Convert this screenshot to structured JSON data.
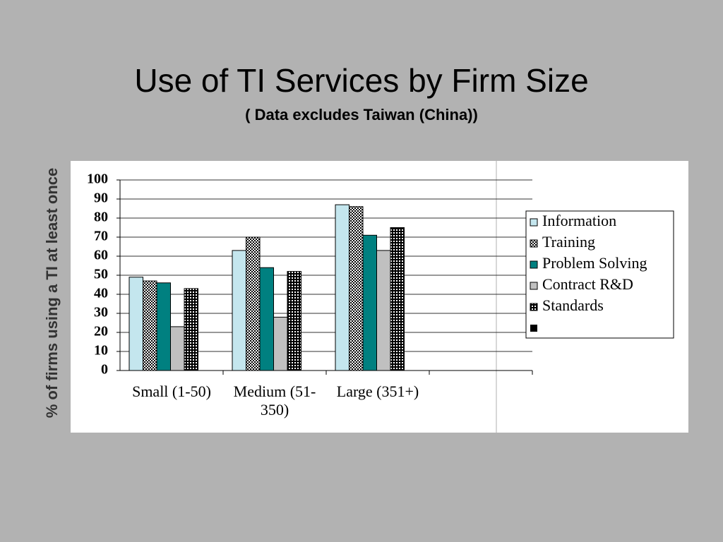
{
  "chart_data": {
    "type": "bar",
    "title": "Use of TI Services by Firm Size",
    "subtitle": "( Data excludes Taiwan (China))",
    "y_label": "% of firms using a TI at least once",
    "categories": [
      "Small (1-50)",
      "Medium (51-350)",
      "Large (351+)",
      null
    ],
    "series": [
      {
        "name": "Information",
        "color": "#c4e6ee",
        "values": [
          49,
          63,
          87,
          null
        ]
      },
      {
        "name": "Training",
        "color": "#9a9a9a",
        "pattern": "checker",
        "values": [
          47,
          70,
          86,
          null
        ]
      },
      {
        "name": "Problem Solving",
        "color": "#008080",
        "values": [
          46,
          54,
          71,
          null
        ]
      },
      {
        "name": "Contract R&D",
        "color": "#c0c0c0",
        "values": [
          23,
          28,
          63,
          null
        ]
      },
      {
        "name": "Standards",
        "color": "#666666",
        "pattern": "grid",
        "values": [
          43,
          52,
          75,
          null
        ]
      }
    ],
    "ylim": [
      0,
      100
    ],
    "yticks": [
      0,
      10,
      20,
      30,
      40,
      50,
      60,
      70,
      80,
      90,
      100
    ],
    "grid": true,
    "legend": "right"
  }
}
